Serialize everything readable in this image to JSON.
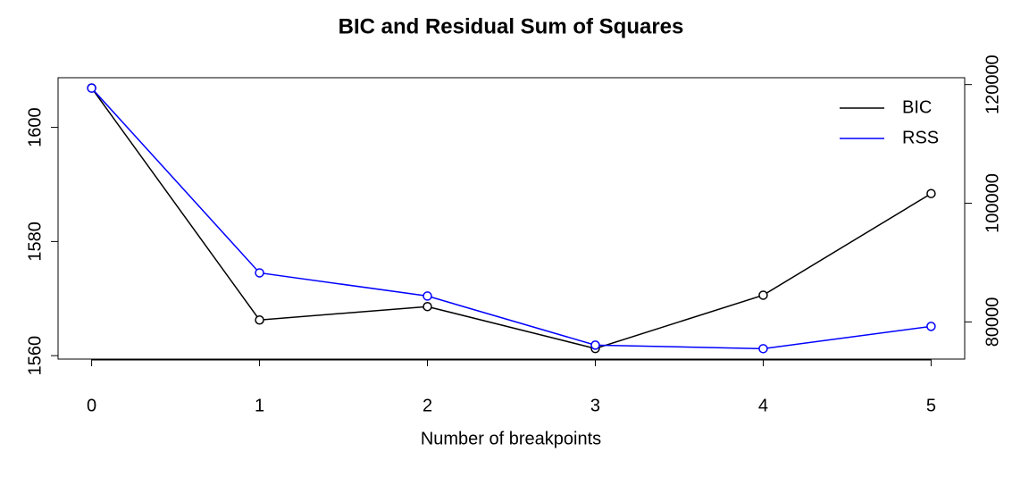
{
  "chart_data": {
    "type": "line",
    "title": "BIC and Residual Sum of Squares",
    "x_label": "Number of breakpoints",
    "x": [
      0,
      1,
      2,
      3,
      4,
      5
    ],
    "xlim": [
      -0.2,
      5.2
    ],
    "xticks": [
      0,
      1,
      2,
      3,
      4,
      5
    ],
    "ylim": [
      1559.4,
      1608.7
    ],
    "yticks": [
      1560,
      1580,
      1600
    ],
    "y2lim": [
      73734,
      121156
    ],
    "y2ticks": [
      80000,
      100000,
      120000
    ],
    "legend": "top-right",
    "series": [
      {
        "name": "BIC",
        "color": "#000000",
        "values": [
          1606.9,
          1566.25,
          1568.6,
          1561.25,
          1570.6,
          1588.4
        ]
      },
      {
        "name": "RSS",
        "color": "#0000ff",
        "axis": "y2",
        "values": [
          119400,
          88270,
          84360,
          76090,
          75490,
          79250
        ]
      }
    ]
  }
}
